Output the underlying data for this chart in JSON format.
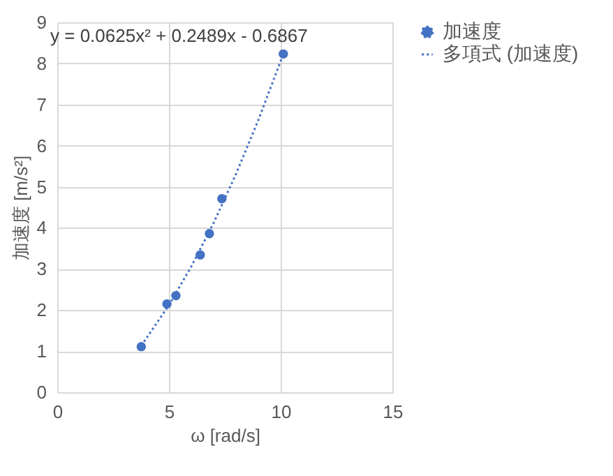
{
  "chart_data": {
    "type": "scatter",
    "xlabel": "ω [rad/s]",
    "ylabel": "加速度 [m/s²]",
    "xlim": [
      0,
      15
    ],
    "xticks": [
      0,
      5,
      10,
      15
    ],
    "ylim": [
      0,
      9
    ],
    "yticks": [
      0,
      1,
      2,
      3,
      4,
      5,
      6,
      7,
      8,
      9
    ],
    "grid": true,
    "legend": "right",
    "annotations": [
      "y = 0.0625x² + 0.2489x - 0.6867"
    ],
    "series": [
      {
        "name": "加速度",
        "color": "#4472c4",
        "marker": "circle",
        "x": [
          3.76,
          4.91,
          5.31,
          6.4,
          6.81,
          7.37,
          10.12
        ],
        "values": [
          1.11,
          2.15,
          2.35,
          3.34,
          3.86,
          4.71,
          8.23
        ]
      },
      {
        "name": "多項式 (加速度)",
        "type": "line",
        "line_style": "dotted",
        "color": "#4472c4",
        "x": [
          3.76,
          5,
          6,
          7,
          8,
          9,
          10.12
        ],
        "values": [
          1.13,
          2.12,
          3.06,
          4.12,
          5.31,
          6.62,
          8.23
        ]
      }
    ]
  }
}
